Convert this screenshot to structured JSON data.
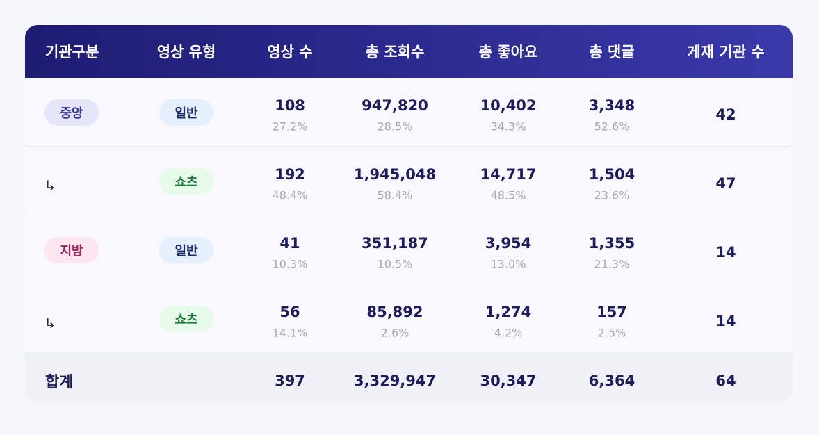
{
  "table": {
    "columns": [
      "기관구분",
      "영상 유형",
      "영상 수",
      "총 조회수",
      "총 좋아요",
      "총 댓글",
      "게재 기관 수"
    ],
    "rows": [
      {
        "org": "중앙",
        "type": "일반",
        "cells": [
          [
            "108",
            "27.2%"
          ],
          [
            "947,820",
            "28.5%"
          ],
          [
            "10,402",
            "34.3%"
          ],
          [
            "3,348",
            "52.6%"
          ]
        ],
        "institutions": "42"
      },
      {
        "org": "↳",
        "type": "쇼츠",
        "cells": [
          [
            "192",
            "48.4%"
          ],
          [
            "1,945,048",
            "58.4%"
          ],
          [
            "14,717",
            "48.5%"
          ],
          [
            "1,504",
            "23.6%"
          ]
        ],
        "institutions": "47"
      },
      {
        "org": "지방",
        "type": "일반",
        "cells": [
          [
            "41",
            "10.3%"
          ],
          [
            "351,187",
            "10.5%"
          ],
          [
            "3,954",
            "13.0%"
          ],
          [
            "1,355",
            "21.3%"
          ]
        ],
        "institutions": "14"
      },
      {
        "org": "↳",
        "type": "쇼츠",
        "cells": [
          [
            "56",
            "14.1%"
          ],
          [
            "85,892",
            "2.6%"
          ],
          [
            "1,274",
            "4.2%"
          ],
          [
            "157",
            "2.5%"
          ]
        ],
        "institutions": "14"
      }
    ],
    "total": {
      "label": "합계",
      "cells": [
        "397",
        "3,329,947",
        "30,347",
        "6,364"
      ],
      "institutions": "64"
    }
  }
}
